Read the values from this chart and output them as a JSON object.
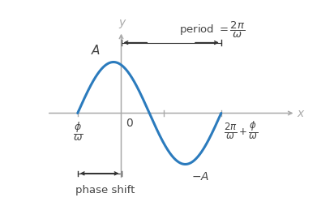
{
  "bg_color": "#ffffff",
  "curve_color": "#2b7bbd",
  "axis_color": "#aaaaaa",
  "text_color": "#444444",
  "arrow_color": "#333333",
  "curve_linewidth": 2.2,
  "figsize": [
    4.12,
    2.7
  ],
  "dpi": 100,
  "xlim": [
    -1.55,
    3.5
  ],
  "ylim": [
    -1.6,
    1.7
  ],
  "phi_over_omega": -0.85,
  "period": 2.8,
  "amplitude": 1.0
}
